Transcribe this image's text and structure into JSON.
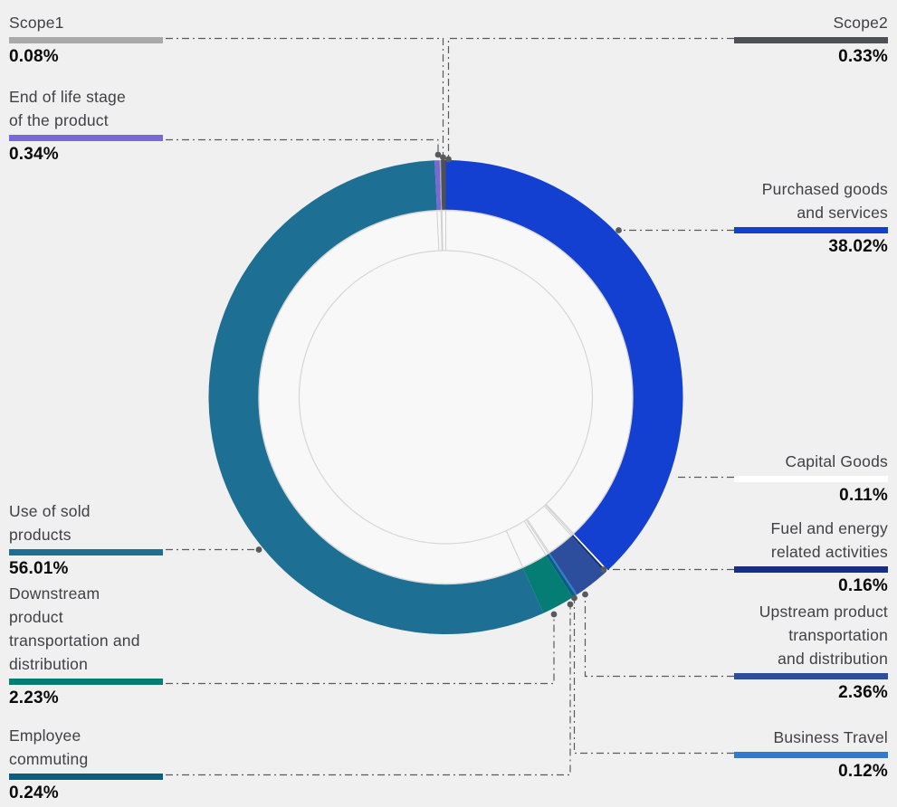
{
  "background_color": "#f0f0f1",
  "chart_data": {
    "type": "pie",
    "subtype": "donut",
    "title": "",
    "unit": "%",
    "start_angle_deg": -90,
    "direction": "clockwise",
    "legend_position": "around-callouts",
    "grid": false,
    "slices": [
      {
        "id": "purchased_goods",
        "label": "Purchased goods and services",
        "label_lines": [
          "Purchased goods",
          "and services"
        ],
        "value": 38.02,
        "display": "38.02%",
        "color": "#1340d0",
        "side": "right"
      },
      {
        "id": "capital_goods",
        "label": "Capital Goods",
        "label_lines": [
          "Capital Goods"
        ],
        "value": 0.11,
        "display": "0.11%",
        "color": "#ffffff",
        "side": "right"
      },
      {
        "id": "fuel_energy",
        "label": "Fuel and energy related activities",
        "label_lines": [
          "Fuel and energy",
          "related activities"
        ],
        "value": 0.16,
        "display": "0.16%",
        "color": "#16307f",
        "side": "right"
      },
      {
        "id": "upstream_transport",
        "label": "Upstream product transportation and distribution",
        "label_lines": [
          "Upstream product",
          "transportation",
          "and distribution"
        ],
        "value": 2.36,
        "display": "2.36%",
        "color": "#2c4e9d",
        "side": "right"
      },
      {
        "id": "business_travel",
        "label": "Business Travel",
        "label_lines": [
          "Business Travel"
        ],
        "value": 0.12,
        "display": "0.12%",
        "color": "#2f7bd0",
        "side": "right"
      },
      {
        "id": "employee_commuting",
        "label": "Employee commuting",
        "label_lines": [
          "Employee",
          "commuting"
        ],
        "value": 0.24,
        "display": "0.24%",
        "color": "#085f80",
        "side": "left"
      },
      {
        "id": "downstream_transport",
        "label": "Downstream product transportation and distribution",
        "label_lines": [
          "Downstream",
          "product",
          "transportation and",
          "distribution"
        ],
        "value": 2.23,
        "display": "2.23%",
        "color": "#067d74",
        "side": "left"
      },
      {
        "id": "use_of_sold",
        "label": "Use of sold products",
        "label_lines": [
          "Use of sold",
          "products"
        ],
        "value": 56.01,
        "display": "56.01%",
        "color": "#1d6f93",
        "side": "left"
      },
      {
        "id": "end_of_life",
        "label": "End of life stage of the product",
        "label_lines": [
          "End of life stage",
          "of the product"
        ],
        "value": 0.34,
        "display": "0.34%",
        "color": "#7769d6",
        "side": "left"
      },
      {
        "id": "scope1",
        "label": "Scope1",
        "label_lines": [
          "Scope1"
        ],
        "value": 0.08,
        "display": "0.08%",
        "color": "#a9a9a9",
        "side": "left"
      },
      {
        "id": "scope2",
        "label": "Scope2",
        "label_lines": [
          "Scope2"
        ],
        "value": 0.33,
        "display": "0.33%",
        "color": "#4d5156",
        "side": "right"
      }
    ]
  },
  "styles": {
    "leader_color": "#595a5e",
    "inner_fill": "#f8f8f8",
    "inner_line_color": "#d6d6d6",
    "separator_color": "#cfcfcf",
    "label_text_color": "#414145",
    "pct_text_color": "#0b0b0c"
  }
}
